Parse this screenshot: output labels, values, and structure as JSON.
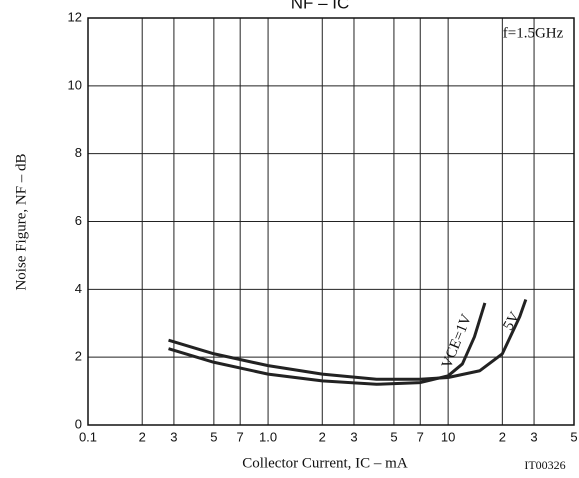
{
  "chart_data": {
    "type": "line",
    "title": "NF – IC",
    "xlabel": "Collector Current, IC  –  mA",
    "ylabel": "Noise Figure, NF  –  dB",
    "annotations": [
      "f=1.5GHz",
      "IT00326"
    ],
    "xscale": "log",
    "grid": true,
    "xlim": [
      0.1,
      50
    ],
    "ylim": [
      0,
      12
    ],
    "xticks": [
      {
        "value": 0.1,
        "label": "0.1"
      },
      {
        "value": 0.2,
        "label": "2"
      },
      {
        "value": 0.3,
        "label": "3"
      },
      {
        "value": 0.5,
        "label": "5"
      },
      {
        "value": 0.7,
        "label": "7"
      },
      {
        "value": 1,
        "label": "1.0"
      },
      2,
      3,
      5,
      7,
      10,
      {
        "value": 20,
        "label": "2"
      },
      {
        "value": 30,
        "label": "3"
      },
      {
        "value": 50,
        "label": "5"
      }
    ],
    "yticks": [
      0,
      2,
      4,
      6,
      8,
      10,
      12
    ],
    "series": [
      {
        "name": "VCE=1V",
        "color": "#222222",
        "x": [
          0.28,
          0.5,
          1,
          2,
          4,
          7,
          10,
          12,
          14,
          16
        ],
        "values": [
          2.25,
          1.85,
          1.5,
          1.3,
          1.2,
          1.25,
          1.45,
          1.8,
          2.6,
          3.6
        ]
      },
      {
        "name": "5V",
        "color": "#222222",
        "x": [
          0.28,
          0.5,
          1,
          2,
          4,
          7,
          10,
          15,
          20,
          25,
          27
        ],
        "values": [
          2.5,
          2.1,
          1.75,
          1.5,
          1.35,
          1.35,
          1.4,
          1.6,
          2.1,
          3.2,
          3.7
        ]
      }
    ]
  }
}
